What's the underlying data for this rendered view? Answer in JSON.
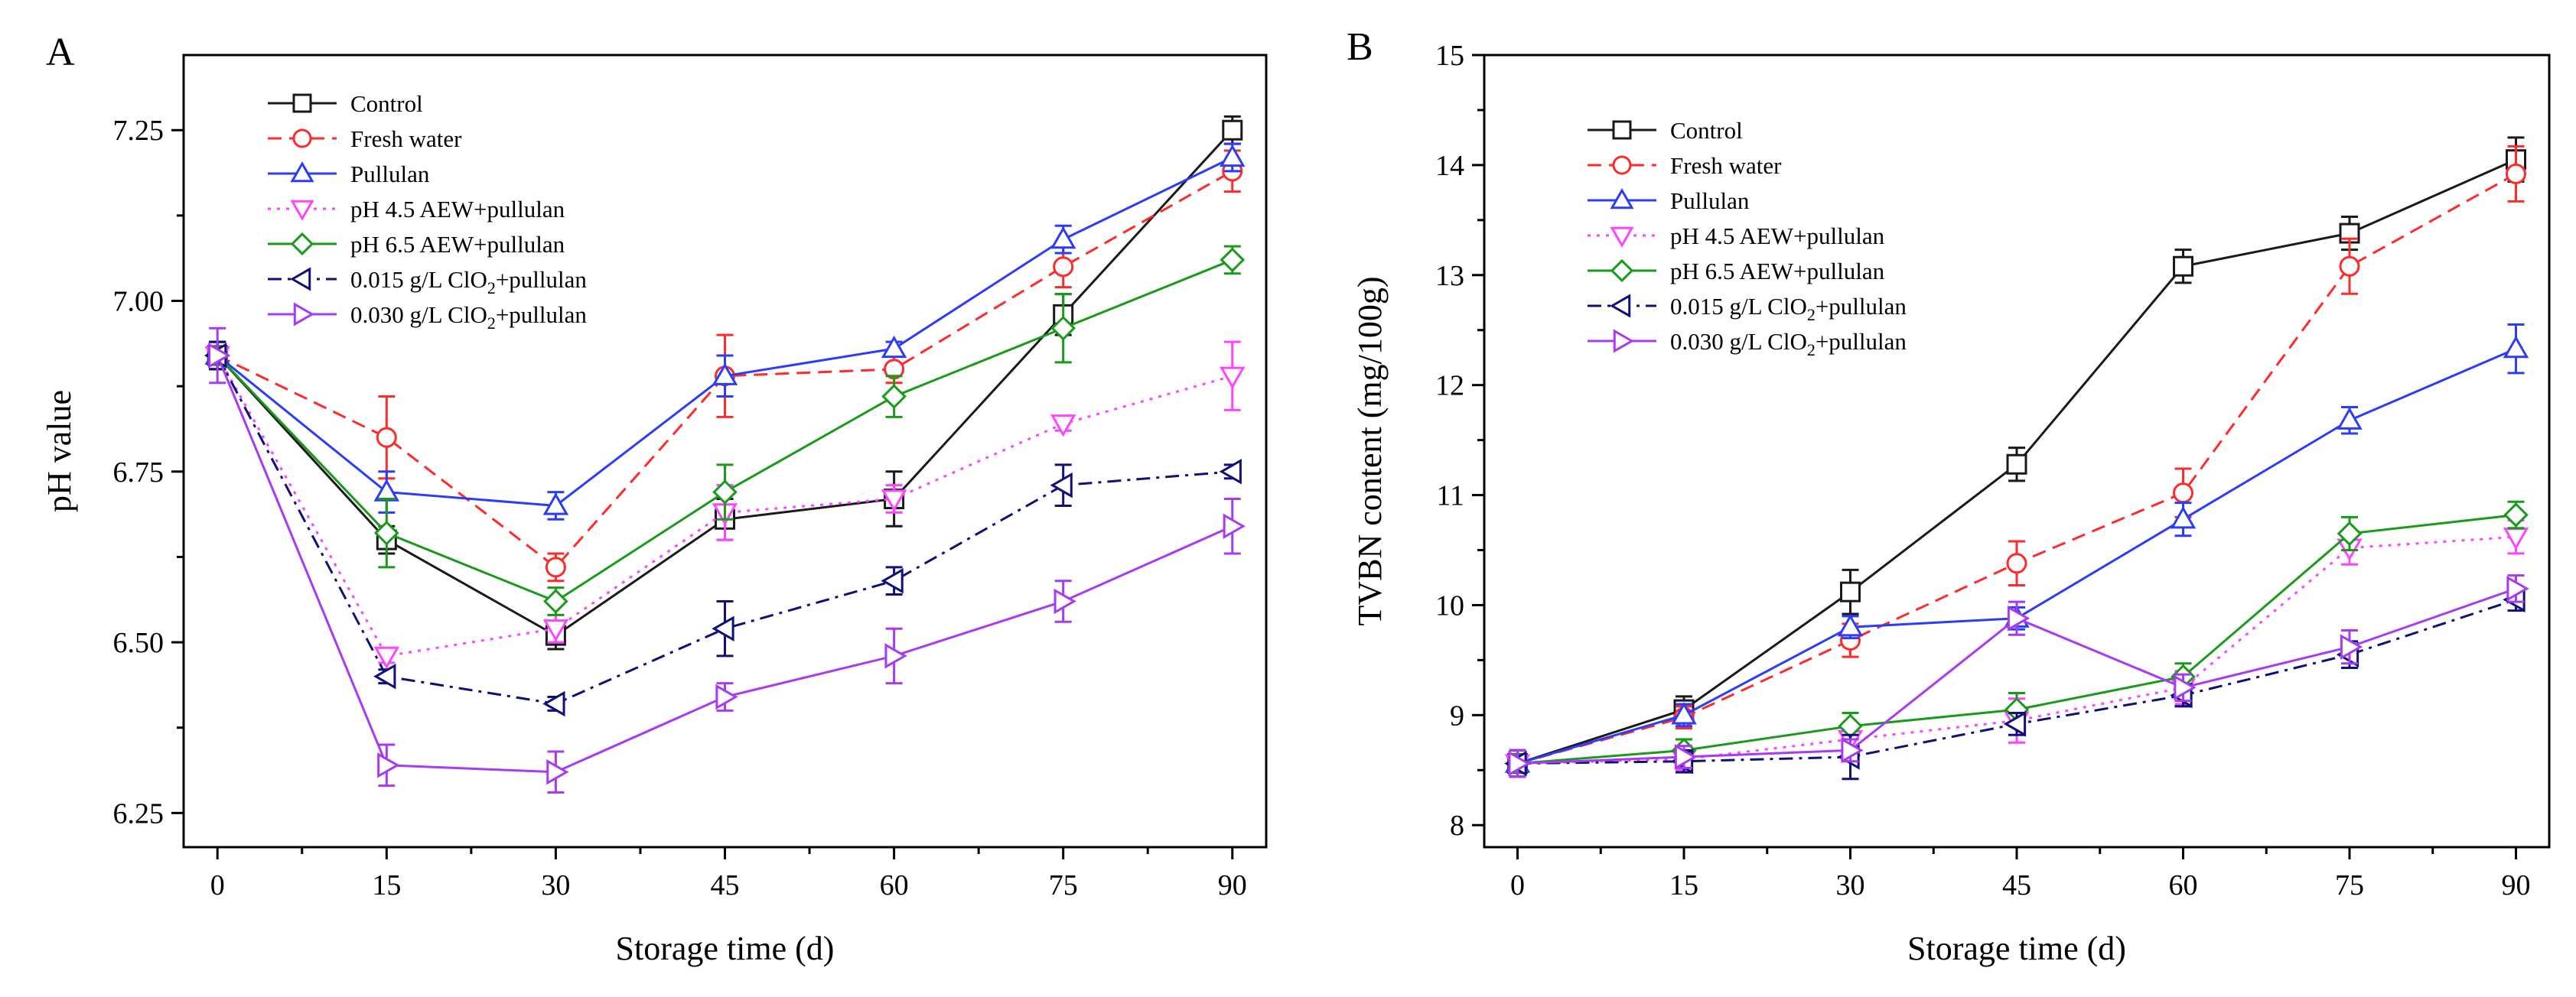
{
  "chart_data": [
    {
      "panel_label": "A",
      "type": "line",
      "xlabel": "Storage time (d)",
      "ylabel": "pH value",
      "xlim": [
        -3,
        93
      ],
      "ylim": [
        6.2,
        7.36
      ],
      "x": [
        0,
        15,
        30,
        45,
        60,
        75,
        90
      ],
      "xticks": [
        0,
        15,
        30,
        45,
        60,
        75,
        90
      ],
      "yticks": [
        6.25,
        6.5,
        6.75,
        7.0,
        7.25
      ],
      "ytick_labels": [
        "6.25",
        "6.50",
        "6.75",
        "7.00",
        "7.25"
      ],
      "grid": false,
      "legend_position": "top-left",
      "series": [
        {
          "name": "Control",
          "values": [
            6.92,
            6.65,
            6.51,
            6.68,
            6.71,
            6.98,
            7.25
          ],
          "errors": [
            0.02,
            0.02,
            0.02,
            0.03,
            0.04,
            0.03,
            0.02
          ]
        },
        {
          "name": "Fresh water",
          "values": [
            6.92,
            6.8,
            6.61,
            6.89,
            6.9,
            7.05,
            7.19
          ],
          "errors": [
            0.02,
            0.06,
            0.02,
            0.06,
            0.02,
            0.03,
            0.03
          ]
        },
        {
          "name": "Pullulan",
          "values": [
            6.92,
            6.72,
            6.7,
            6.89,
            6.93,
            7.09,
            7.21
          ],
          "errors": [
            0.02,
            0.03,
            0.02,
            0.03,
            0.01,
            0.02,
            0.02
          ]
        },
        {
          "name": "pH 4.5 AEW+pullulan",
          "values": [
            6.92,
            6.48,
            6.52,
            6.69,
            6.71,
            6.82,
            6.89
          ],
          "errors": [
            0.02,
            0.01,
            0.02,
            0.04,
            0.02,
            0.01,
            0.05
          ]
        },
        {
          "name": "pH 6.5 AEW+pullulan",
          "values": [
            6.92,
            6.66,
            6.56,
            6.72,
            6.86,
            6.96,
            7.06
          ],
          "errors": [
            0.02,
            0.05,
            0.02,
            0.04,
            0.03,
            0.05,
            0.02
          ]
        },
        {
          "name": "0.015 g/L ClO2+pullulan",
          "values": [
            6.92,
            6.45,
            6.41,
            6.52,
            6.59,
            6.73,
            6.75
          ],
          "errors": [
            0.02,
            0.01,
            0.01,
            0.04,
            0.02,
            0.03,
            0.01
          ]
        },
        {
          "name": "0.030 g/L ClO2+pullulan",
          "values": [
            6.92,
            6.32,
            6.31,
            6.42,
            6.48,
            6.56,
            6.67
          ],
          "errors": [
            0.04,
            0.03,
            0.03,
            0.02,
            0.04,
            0.03,
            0.04
          ]
        }
      ]
    },
    {
      "panel_label": "B",
      "type": "line",
      "xlabel": "Storage time (d)",
      "ylabel": "TVBN content (mg/100g)",
      "xlim": [
        -3,
        93
      ],
      "ylim": [
        7.8,
        15
      ],
      "x": [
        0,
        15,
        30,
        45,
        60,
        75,
        90
      ],
      "xticks": [
        0,
        15,
        30,
        45,
        60,
        75,
        90
      ],
      "yticks": [
        8,
        9,
        10,
        11,
        12,
        13,
        14,
        15
      ],
      "ytick_labels": [
        "8",
        "9",
        "10",
        "11",
        "12",
        "13",
        "14",
        "15"
      ],
      "grid": false,
      "legend_position": "top-left",
      "series": [
        {
          "name": "Control",
          "values": [
            8.56,
            9.05,
            10.12,
            11.28,
            13.08,
            13.38,
            14.05
          ],
          "errors": [
            0.12,
            0.12,
            0.2,
            0.15,
            0.15,
            0.15,
            0.2
          ]
        },
        {
          "name": "Fresh water",
          "values": [
            8.56,
            8.98,
            9.68,
            10.38,
            11.02,
            13.08,
            13.92
          ],
          "errors": [
            0.12,
            0.1,
            0.15,
            0.2,
            0.22,
            0.25,
            0.25
          ]
        },
        {
          "name": "Pullulan",
          "values": [
            8.56,
            9.0,
            9.8,
            9.88,
            10.78,
            11.68,
            12.33
          ],
          "errors": [
            0.12,
            0.1,
            0.1,
            0.1,
            0.15,
            0.12,
            0.22
          ]
        },
        {
          "name": "pH 4.5 AEW+pullulan",
          "values": [
            8.56,
            8.6,
            8.78,
            8.95,
            9.25,
            10.52,
            10.62
          ],
          "errors": [
            0.12,
            0.1,
            0.12,
            0.2,
            0.15,
            0.15,
            0.15
          ]
        },
        {
          "name": "pH 6.5 AEW+pullulan",
          "values": [
            8.56,
            8.68,
            8.9,
            9.05,
            9.35,
            10.65,
            10.82
          ],
          "errors": [
            0.12,
            0.1,
            0.12,
            0.15,
            0.12,
            0.15,
            0.12
          ]
        },
        {
          "name": "0.015 g/L ClO2+pullulan",
          "values": [
            8.56,
            8.58,
            8.62,
            8.92,
            9.18,
            9.55,
            10.05
          ],
          "errors": [
            0.12,
            0.1,
            0.2,
            0.1,
            0.1,
            0.12,
            0.1
          ]
        },
        {
          "name": "0.030 g/L ClO2+pullulan",
          "values": [
            8.56,
            8.62,
            8.68,
            9.88,
            9.25,
            9.62,
            10.15
          ],
          "errors": [
            0.12,
            0.1,
            0.1,
            0.15,
            0.12,
            0.15,
            0.12
          ]
        }
      ]
    }
  ],
  "series_styles": [
    {
      "color": "#1a1a1a",
      "dash": "solid",
      "marker": "square"
    },
    {
      "color": "#ff2a2a",
      "dash": "dashed",
      "marker": "circle"
    },
    {
      "color": "#2b3df5",
      "dash": "solid",
      "marker": "triangle-up"
    },
    {
      "color": "#ff44ff",
      "dash": "dotted",
      "marker": "triangle-down"
    },
    {
      "color": "#1a9a1a",
      "dash": "solid",
      "marker": "diamond"
    },
    {
      "color": "#10107a",
      "dash": "dashdot",
      "marker": "triangle-left"
    },
    {
      "color": "#a83af0",
      "dash": "solid",
      "marker": "triangle-right"
    }
  ]
}
